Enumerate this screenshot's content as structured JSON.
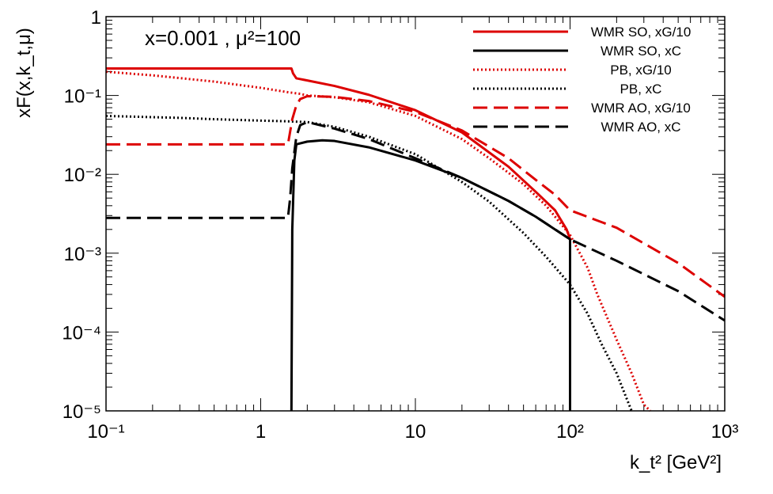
{
  "chart_data": {
    "type": "line",
    "title": "",
    "annotation": "x=0.001 , μ²=100",
    "xlabel": "k_t² [GeV²]",
    "ylabel": "xF(x,k_t,μ)",
    "xscale": "log",
    "yscale": "log",
    "xlim": [
      0.1,
      1000
    ],
    "ylim": [
      1e-05,
      1
    ],
    "x_tick_labels": [
      "10⁻¹",
      "1",
      "10",
      "10²",
      "10³"
    ],
    "y_tick_labels": [
      "10⁻⁵",
      "10⁻⁴",
      "10⁻³",
      "10⁻²",
      "10⁻¹",
      "1"
    ],
    "legend_position": "top-right",
    "series": [
      {
        "name": "WMR SO, xG/10",
        "color": "#dd0000",
        "style": "solid",
        "x": [
          0.1,
          1.58,
          1.62,
          1.7,
          2,
          3,
          5,
          10,
          20,
          40,
          60,
          80,
          95,
          99,
          100
        ],
        "y": [
          0.22,
          0.22,
          0.19,
          0.165,
          0.155,
          0.132,
          0.102,
          0.065,
          0.034,
          0.0125,
          0.006,
          0.0035,
          0.002,
          0.0016,
          0.0015
        ]
      },
      {
        "name": "WMR SO, xC",
        "color": "#000000",
        "style": "solid",
        "x": [
          1.58,
          1.6,
          1.65,
          1.7,
          2,
          2.5,
          3,
          5,
          10,
          20,
          40,
          60,
          80,
          100,
          100,
          100
        ],
        "y": [
          1e-05,
          0.002,
          0.015,
          0.024,
          0.026,
          0.027,
          0.0265,
          0.022,
          0.015,
          0.009,
          0.0046,
          0.0029,
          0.002,
          0.0015,
          0.0015,
          1e-05
        ]
      },
      {
        "name": "PB, xG/10",
        "color": "#dd0000",
        "style": "dotted",
        "x": [
          0.1,
          0.2,
          0.5,
          1,
          1.5,
          1.8,
          2,
          3,
          5,
          10,
          20,
          30,
          50,
          70,
          100,
          110,
          130,
          150,
          200,
          250,
          300,
          330
        ],
        "y": [
          0.2,
          0.18,
          0.15,
          0.125,
          0.11,
          0.105,
          0.1,
          0.095,
          0.082,
          0.055,
          0.028,
          0.016,
          0.0075,
          0.004,
          0.0017,
          0.0012,
          0.00065,
          0.0003,
          8e-05,
          3e-05,
          1.2e-05,
          1e-05
        ]
      },
      {
        "name": "PB, xC",
        "color": "#000000",
        "style": "dotted",
        "x": [
          0.1,
          0.3,
          0.5,
          1,
          1.5,
          2,
          3,
          5,
          10,
          20,
          30,
          50,
          70,
          100,
          130,
          160,
          200,
          230,
          250
        ],
        "y": [
          0.055,
          0.052,
          0.05,
          0.048,
          0.047,
          0.046,
          0.04,
          0.03,
          0.018,
          0.008,
          0.0045,
          0.0018,
          0.0009,
          0.0004,
          0.00017,
          7e-05,
          3e-05,
          1.5e-05,
          1e-05
        ]
      },
      {
        "name": "WMR AO, xG/10",
        "color": "#dd0000",
        "style": "dashed",
        "x": [
          0.1,
          1.5,
          1.6,
          1.7,
          1.8,
          2,
          3,
          5,
          10,
          20,
          40,
          60,
          80,
          100,
          200,
          500,
          1000
        ],
        "y": [
          0.024,
          0.024,
          0.05,
          0.075,
          0.09,
          0.098,
          0.096,
          0.085,
          0.062,
          0.036,
          0.016,
          0.0085,
          0.0055,
          0.0035,
          0.0021,
          0.00075,
          0.00028
        ]
      },
      {
        "name": "WMR AO, xC",
        "color": "#000000",
        "style": "dashed",
        "x": [
          0.1,
          1.5,
          1.55,
          1.6,
          1.7,
          1.8,
          2,
          3,
          5,
          10,
          20,
          40,
          60,
          80,
          100,
          200,
          500,
          1000
        ],
        "y": [
          0.0028,
          0.0028,
          0.005,
          0.012,
          0.03,
          0.042,
          0.046,
          0.038,
          0.028,
          0.016,
          0.009,
          0.0046,
          0.0029,
          0.002,
          0.0015,
          0.0008,
          0.00033,
          0.00014
        ]
      }
    ]
  }
}
